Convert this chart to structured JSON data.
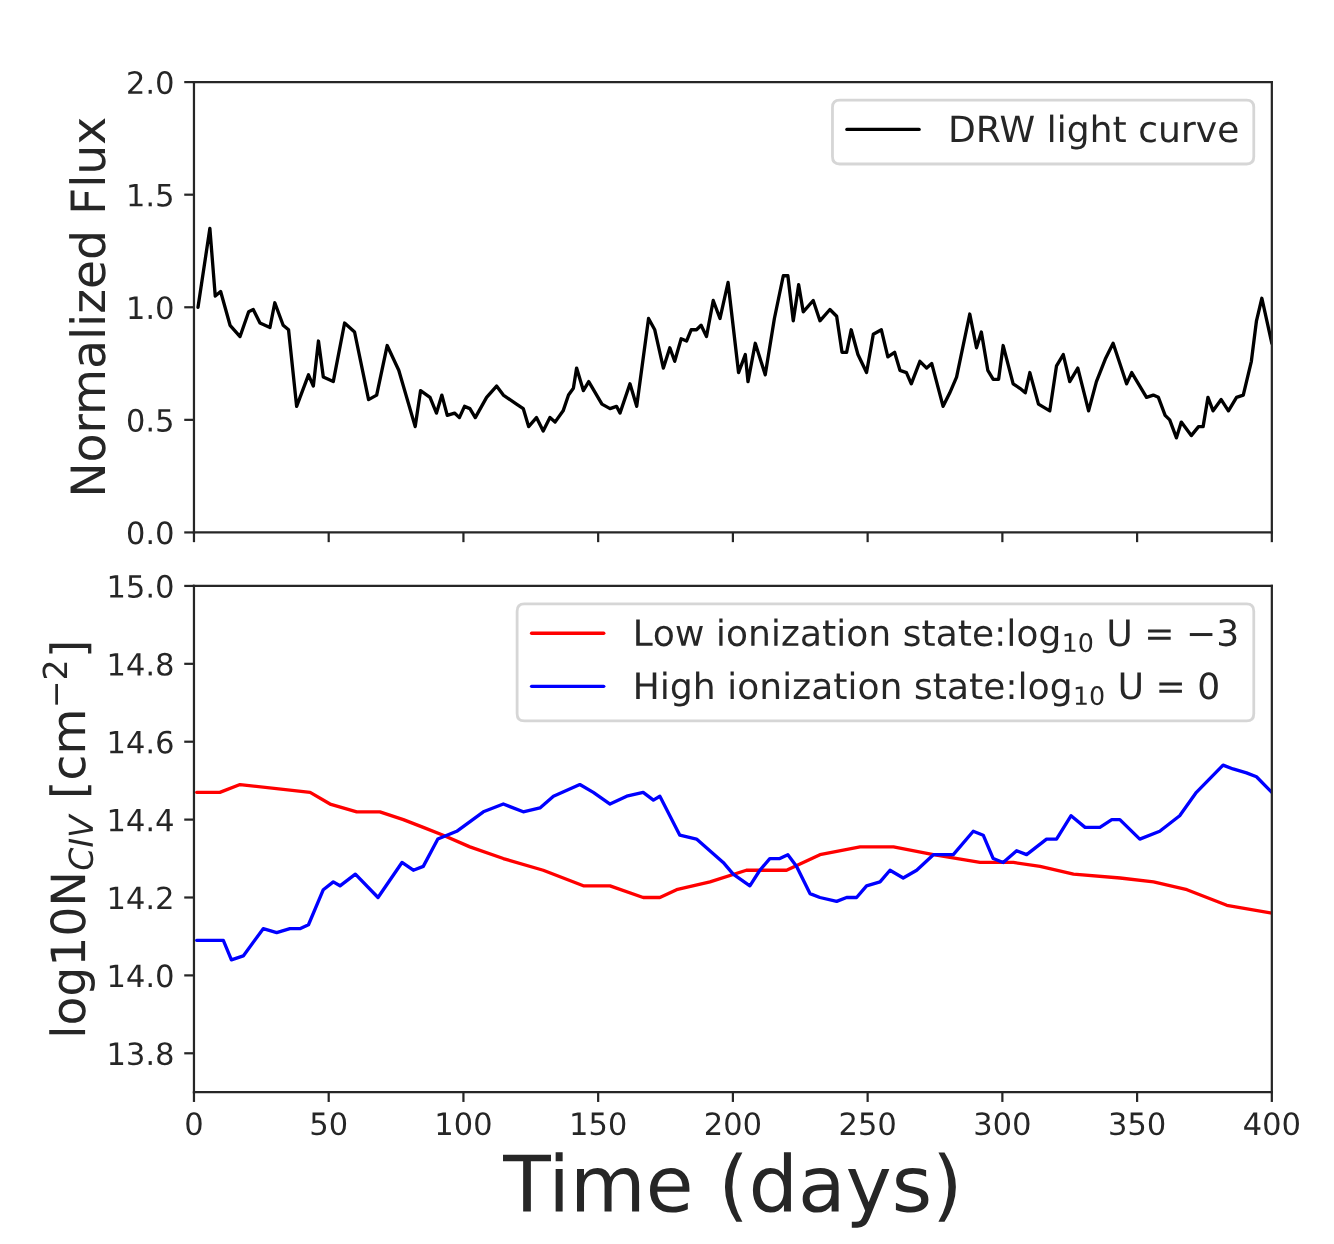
{
  "chart_data": [
    {
      "type": "line",
      "ylabel": "Normalized Flux",
      "xlim": [
        0,
        400
      ],
      "xticks": [
        0,
        50,
        100,
        150,
        200,
        250,
        300,
        350,
        400
      ],
      "ylim": [
        0,
        2
      ],
      "yticks": [
        {
          "value": 0,
          "label": "0.0"
        },
        0.5,
        {
          "value": 1,
          "label": "1.0"
        },
        1.5,
        {
          "value": 2,
          "label": "2.0"
        }
      ],
      "tick_labels": "y",
      "legend": "top right",
      "grid": false,
      "series": [
        {
          "name": "DRW light curve",
          "color": "#000000",
          "x": [
            1.5,
            5.9,
            7.9,
            9.9,
            13.4,
            17.1,
            20.3,
            22,
            24.5,
            28.2,
            30,
            33.1,
            35.1,
            38.1,
            42.5,
            44.3,
            46.2,
            48,
            51.7,
            55.9,
            59.6,
            64.8,
            67.8,
            71.7,
            76,
            82.1,
            84.1,
            87.6,
            90,
            92,
            94,
            96.7,
            98.5,
            100.4,
            102.4,
            104.4,
            108.6,
            112.3,
            114.8,
            119.7,
            122.2,
            124.2,
            127.1,
            129.6,
            132.1,
            134,
            137,
            139,
            140.8,
            142,
            144.5,
            146.5,
            151.4,
            154.4,
            156.8,
            158.1,
            161.8,
            164.3,
            168.7,
            171,
            174.2,
            176.6,
            178.4,
            180.8,
            182.8,
            184.5,
            186.5,
            188.2,
            190.2,
            192.7,
            195.2,
            198.2,
            202.1,
            204.6,
            205.6,
            208.3,
            212,
            215.4,
            218.7,
            220.4,
            222.4,
            224.4,
            226.1,
            229.8,
            232.3,
            236,
            238.5,
            240.5,
            242.2,
            243.9,
            246.4,
            249.6,
            252.1,
            255.1,
            257.5,
            260,
            262,
            264.4,
            266.2,
            269.4,
            271.9,
            273.8,
            278,
            280.5,
            283,
            287.9,
            290.4,
            292.2,
            294.6,
            296.6,
            298.6,
            300.3,
            304,
            306.5,
            308.5,
            310.2,
            313.4,
            317.6,
            320.1,
            322.6,
            325,
            328,
            332,
            334.9,
            338.2,
            341.1,
            346.1,
            348,
            353.5,
            356,
            357.9,
            360.4,
            362.1,
            364.6,
            366.4,
            370.1,
            372.8,
            374.5,
            376.3,
            378.2,
            381.2,
            383.9,
            386.9,
            389.4,
            392.4,
            394.3,
            396.3,
            400
          ],
          "values": [
            1.0,
            1.35,
            1.05,
            1.07,
            0.92,
            0.87,
            0.98,
            0.99,
            0.93,
            0.91,
            1.02,
            0.92,
            0.9,
            0.56,
            0.7,
            0.65,
            0.85,
            0.69,
            0.67,
            0.93,
            0.89,
            0.59,
            0.61,
            0.83,
            0.72,
            0.47,
            0.63,
            0.6,
            0.53,
            0.61,
            0.52,
            0.53,
            0.51,
            0.56,
            0.55,
            0.51,
            0.6,
            0.65,
            0.61,
            0.57,
            0.55,
            0.47,
            0.51,
            0.45,
            0.51,
            0.49,
            0.54,
            0.61,
            0.64,
            0.73,
            0.63,
            0.67,
            0.57,
            0.55,
            0.56,
            0.53,
            0.66,
            0.56,
            0.95,
            0.9,
            0.73,
            0.82,
            0.76,
            0.86,
            0.85,
            0.9,
            0.9,
            0.92,
            0.87,
            1.03,
            0.95,
            1.11,
            0.71,
            0.79,
            0.67,
            0.84,
            0.7,
            0.95,
            1.14,
            1.14,
            0.94,
            1.1,
            0.98,
            1.03,
            0.94,
            0.99,
            0.96,
            0.8,
            0.8,
            0.9,
            0.79,
            0.71,
            0.88,
            0.9,
            0.78,
            0.8,
            0.72,
            0.71,
            0.66,
            0.76,
            0.73,
            0.75,
            0.56,
            0.62,
            0.69,
            0.97,
            0.82,
            0.89,
            0.72,
            0.68,
            0.68,
            0.83,
            0.66,
            0.64,
            0.62,
            0.71,
            0.57,
            0.54,
            0.74,
            0.79,
            0.67,
            0.73,
            0.54,
            0.67,
            0.77,
            0.84,
            0.66,
            0.71,
            0.6,
            0.61,
            0.6,
            0.52,
            0.5,
            0.42,
            0.49,
            0.43,
            0.47,
            0.47,
            0.6,
            0.54,
            0.59,
            0.54,
            0.6,
            0.61,
            0.76,
            0.94,
            1.04,
            0.84
          ]
        }
      ]
    },
    {
      "type": "line",
      "xlabel": "Time (days)",
      "ylabel": "log10N$_{CIV}$ [cm$^{−2}$]",
      "xlim": [
        0,
        400
      ],
      "xticks": [
        0,
        50,
        100,
        150,
        200,
        250,
        300,
        350,
        400
      ],
      "ylim": [
        13.7,
        15.0
      ],
      "yticks": [
        13.8,
        {
          "value": 14.0,
          "label": "14.0"
        },
        14.2,
        14.4,
        14.6,
        14.8,
        {
          "value": 15.0,
          "label": "15.0"
        }
      ],
      "legend": "top right",
      "grid": false,
      "series": [
        {
          "name": "Low ionization state:log$_{10}$ U = −3",
          "color": "#ff0000",
          "x": [
            1,
            9.6,
            17.1,
            43.1,
            50.5,
            60.4,
            69,
            77.7,
            85.1,
            92.5,
            102.4,
            114.8,
            129.6,
            144.5,
            154.4,
            166.7,
            172.9,
            179.1,
            191.5,
            205,
            219.9,
            232.3,
            247.2,
            259.6,
            274.4,
            291.7,
            304.1,
            314,
            326.4,
            343.7,
            356.1,
            368.5,
            383.3,
            400
          ],
          "values": [
            14.47,
            14.47,
            14.49,
            14.47,
            14.44,
            14.42,
            14.42,
            14.4,
            14.38,
            14.36,
            14.33,
            14.3,
            14.27,
            14.23,
            14.23,
            14.2,
            14.2,
            14.22,
            14.24,
            14.27,
            14.27,
            14.31,
            14.33,
            14.33,
            14.31,
            14.29,
            14.29,
            14.28,
            14.26,
            14.25,
            14.24,
            14.22,
            14.18,
            14.16
          ]
        },
        {
          "name": "High ionization state:log$_{10}$ U = 0",
          "color": "#0000ff",
          "x": [
            1,
            10.9,
            13.9,
            18.3,
            25.7,
            30.7,
            35.6,
            39.3,
            42.5,
            48,
            51.7,
            54.2,
            59.9,
            68.3,
            77.2,
            81.4,
            85.1,
            90.5,
            97.5,
            107.4,
            114.8,
            122.2,
            128.4,
            133.4,
            143.2,
            148.2,
            154.4,
            160.6,
            166.7,
            170.5,
            172.9,
            180.3,
            186.5,
            196.4,
            200.1,
            206.3,
            210,
            213.7,
            217.4,
            220.4,
            223.6,
            228.6,
            232.3,
            238.5,
            242.2,
            245.9,
            249.6,
            254.6,
            258.3,
            263.2,
            268.2,
            274.4,
            281.8,
            289.2,
            292.9,
            296.6,
            300.3,
            305.3,
            309,
            316.4,
            320.1,
            325.5,
            330.7,
            336.2,
            340.6,
            343.6,
            351,
            358.4,
            365.8,
            372,
            381.9,
            385.6,
            390.6,
            394.3,
            400
          ],
          "values": [
            14.09,
            14.09,
            14.04,
            14.05,
            14.12,
            14.11,
            14.12,
            14.12,
            14.13,
            14.22,
            14.24,
            14.23,
            14.26,
            14.2,
            14.29,
            14.27,
            14.28,
            14.35,
            14.37,
            14.42,
            14.44,
            14.42,
            14.43,
            14.46,
            14.49,
            14.47,
            14.44,
            14.46,
            14.47,
            14.45,
            14.46,
            14.36,
            14.35,
            14.29,
            14.26,
            14.23,
            14.27,
            14.3,
            14.3,
            14.31,
            14.28,
            14.21,
            14.2,
            14.19,
            14.2,
            14.2,
            14.23,
            14.24,
            14.27,
            14.25,
            14.27,
            14.31,
            14.31,
            14.37,
            14.36,
            14.3,
            14.29,
            14.32,
            14.31,
            14.35,
            14.35,
            14.41,
            14.38,
            14.38,
            14.4,
            14.4,
            14.35,
            14.37,
            14.41,
            14.47,
            14.54,
            14.53,
            14.52,
            14.51,
            14.47
          ]
        }
      ]
    }
  ]
}
